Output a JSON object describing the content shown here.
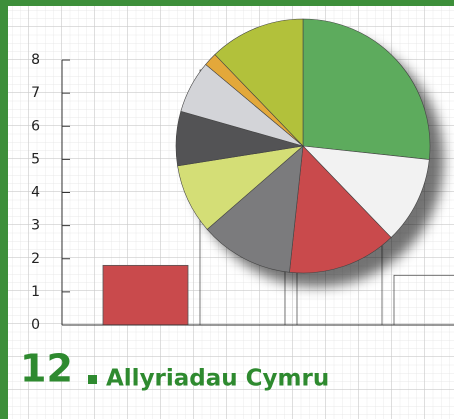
{
  "heading": {
    "number": "12",
    "text": "Allyriadau Cymru"
  },
  "chart_data": [
    {
      "type": "bar",
      "ylim": [
        0,
        8
      ],
      "yticks": [
        0,
        1,
        2,
        3,
        4,
        5,
        6,
        7,
        8
      ],
      "values": [
        1.8,
        7.7,
        6.8,
        1.5
      ],
      "colors": [
        "#c94a4c",
        "none",
        "none",
        "none"
      ]
    },
    {
      "type": "pie",
      "values": [
        26.7,
        11.1,
        13.9,
        11.9,
        8.9,
        6.9,
        6.7,
        1.7,
        12.2
      ],
      "colors": [
        "#5dab5d",
        "#f2f2f2",
        "#c94a4c",
        "#7b7b7d",
        "#d4de76",
        "#535355",
        "#d3d4d8",
        "#e3a83a",
        "#b2c13b"
      ]
    }
  ]
}
